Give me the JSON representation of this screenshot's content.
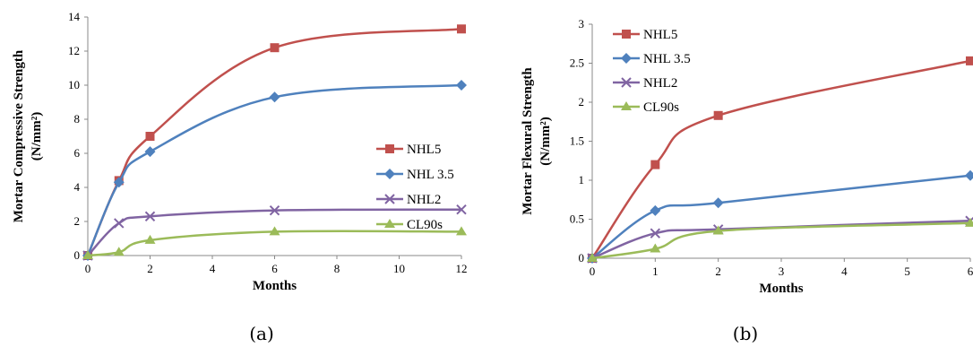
{
  "colors": {
    "NHL5": "#c0504d",
    "NHL 3.5": "#4f81bd",
    "NHL2": "#8064a2",
    "CL90s": "#9bbb59"
  },
  "chart_data": [
    {
      "type": "line",
      "caption": "(a)",
      "xlabel": "Months",
      "ylabel_line1": "Mortar Compressive  Strength",
      "ylabel_line2": "(N/mm²)",
      "xlim": [
        0,
        12
      ],
      "ylim": [
        0,
        14
      ],
      "xticks": [
        0,
        2,
        4,
        6,
        8,
        10,
        12
      ],
      "yticks": [
        0,
        2,
        4,
        6,
        8,
        10,
        12,
        14
      ],
      "legend_position": "right",
      "series": [
        {
          "name": "NHL5",
          "marker": "square",
          "x": [
            0,
            1,
            2,
            6,
            12
          ],
          "y": [
            0,
            4.4,
            7.0,
            12.2,
            13.3
          ]
        },
        {
          "name": "NHL 3.5",
          "marker": "diamond",
          "x": [
            0,
            1,
            2,
            6,
            12
          ],
          "y": [
            0,
            4.3,
            6.1,
            9.3,
            10.0
          ]
        },
        {
          "name": "NHL2",
          "marker": "x",
          "x": [
            0,
            1,
            2,
            6,
            12
          ],
          "y": [
            0,
            1.9,
            2.3,
            2.65,
            2.7
          ]
        },
        {
          "name": "CL90s",
          "marker": "triangle",
          "x": [
            0,
            1,
            2,
            6,
            12
          ],
          "y": [
            0,
            0.2,
            0.9,
            1.4,
            1.4
          ]
        }
      ]
    },
    {
      "type": "line",
      "caption": "(b)",
      "xlabel": "Months",
      "ylabel_line1": "Mortar Flexural Strength",
      "ylabel_line2": "(N/mm²)",
      "xlim": [
        0,
        6
      ],
      "ylim": [
        0,
        3
      ],
      "xticks": [
        0,
        1,
        2,
        3,
        4,
        5,
        6
      ],
      "yticks": [
        0,
        0.5,
        1,
        1.5,
        2,
        2.5,
        3
      ],
      "legend_position": "top-left",
      "series": [
        {
          "name": "NHL5",
          "marker": "square",
          "x": [
            0,
            1,
            2,
            6
          ],
          "y": [
            0,
            1.2,
            1.83,
            2.53
          ]
        },
        {
          "name": "NHL 3.5",
          "marker": "diamond",
          "x": [
            0,
            1,
            2,
            6
          ],
          "y": [
            0,
            0.61,
            0.71,
            1.06
          ]
        },
        {
          "name": "NHL2",
          "marker": "x",
          "x": [
            0,
            1,
            2,
            6
          ],
          "y": [
            0,
            0.32,
            0.37,
            0.48
          ]
        },
        {
          "name": "CL90s",
          "marker": "triangle",
          "x": [
            0,
            1,
            2,
            6
          ],
          "y": [
            0,
            0.12,
            0.35,
            0.45
          ]
        }
      ]
    }
  ]
}
